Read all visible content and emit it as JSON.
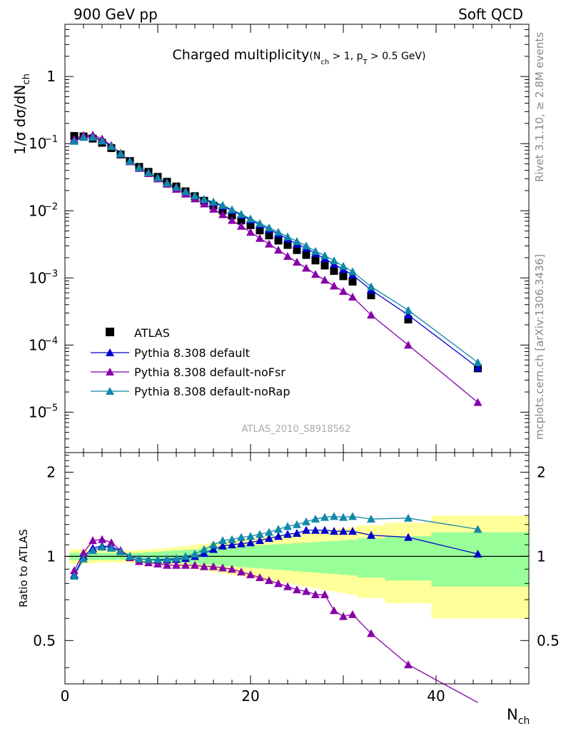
{
  "header": {
    "left_label": "900 GeV pp",
    "right_label": "Soft QCD"
  },
  "side_labels": {
    "rivet": "Rivet 3.1.10, ≥ 2.8M events",
    "mcplots": "mcplots.cern.ch [arXiv:1306.3436]"
  },
  "chart_data": {
    "type": "scatter",
    "title_main": "Charged multiplicity",
    "title_sub_parts": [
      "(N",
      "ch",
      " > 1, p",
      "T",
      " > 0.5 GeV)"
    ],
    "analysis_tag": "ATLAS_2010_S8918562",
    "xlabel_main": "N",
    "xlabel_sub": "ch",
    "ylabel_top_parts": [
      "1/σ dσ/dN",
      "ch"
    ],
    "ylabel_bottom": "Ratio to ATLAS",
    "xlim": [
      0,
      50
    ],
    "ylim_top": [
      2.5e-06,
      6
    ],
    "ylog_top": true,
    "ylim_bottom": [
      0.35,
      2.35
    ],
    "ylog_bottom": true,
    "x_ticks": [
      "0",
      "20",
      "40"
    ],
    "y_ticks_top": [
      {
        "base": "1",
        "exp": ""
      },
      {
        "base": "10",
        "exp": "−1"
      },
      {
        "base": "10",
        "exp": "−2"
      },
      {
        "base": "10",
        "exp": "−3"
      },
      {
        "base": "10",
        "exp": "−4"
      },
      {
        "base": "10",
        "exp": "−5"
      }
    ],
    "y_ticks_bottom": [
      "2",
      "1",
      "0.5"
    ],
    "legend_position": "lower-left",
    "colors": {
      "data": "#000000",
      "default": "#0000cc",
      "noFsr": "#8800aa",
      "noRap": "#1188aa",
      "band_inner": "#99ff99",
      "band_outer": "#ffff99"
    },
    "data": {
      "name": "ATLAS",
      "x": [
        1,
        2,
        3,
        4,
        5,
        6,
        7,
        8,
        9,
        10,
        11,
        12,
        13,
        14,
        15,
        16,
        17,
        18,
        19,
        20,
        21,
        22,
        23,
        24,
        25,
        26,
        27,
        28,
        29,
        30,
        31,
        33,
        37,
        44.5
      ],
      "y": [
        0.13,
        0.128,
        0.119,
        0.103,
        0.086,
        0.069,
        0.055,
        0.045,
        0.038,
        0.032,
        0.027,
        0.023,
        0.0195,
        0.0165,
        0.0141,
        0.0119,
        0.0101,
        0.0085,
        0.0072,
        0.0061,
        0.0051,
        0.0043,
        0.0036,
        0.0031,
        0.0026,
        0.0022,
        0.00182,
        0.00153,
        0.00127,
        0.00106,
        0.00088,
        0.00055,
        0.00024,
        4.5e-05
      ]
    },
    "series": [
      {
        "name": "Pythia 8.308 default",
        "x": [
          1,
          2,
          3,
          4,
          5,
          6,
          7,
          8,
          9,
          10,
          11,
          12,
          13,
          14,
          15,
          16,
          17,
          18,
          19,
          20,
          21,
          22,
          23,
          24,
          25,
          26,
          27,
          28,
          29,
          30,
          31,
          33,
          37,
          44.5
        ],
        "y": [
          0.111,
          0.128,
          0.127,
          0.112,
          0.093,
          0.072,
          0.055,
          0.044,
          0.037,
          0.031,
          0.026,
          0.0224,
          0.0192,
          0.0165,
          0.0145,
          0.0132,
          0.0117,
          0.0101,
          0.0086,
          0.0073,
          0.0062,
          0.0053,
          0.0045,
          0.0038,
          0.0032,
          0.00278,
          0.0023,
          0.00194,
          0.0016,
          0.00134,
          0.00111,
          0.00066,
          0.00028,
          4.6e-05
        ],
        "ratio": [
          0.86,
          1.0,
          1.07,
          1.09,
          1.08,
          1.05,
          1.0,
          0.98,
          0.975,
          0.97,
          0.97,
          0.975,
          0.985,
          1.0,
          1.025,
          1.06,
          1.09,
          1.1,
          1.11,
          1.12,
          1.14,
          1.16,
          1.18,
          1.2,
          1.21,
          1.24,
          1.24,
          1.24,
          1.23,
          1.23,
          1.23,
          1.19,
          1.17,
          1.02
        ]
      },
      {
        "name": "Pythia 8.308 default-noFsr",
        "x": [
          1,
          2,
          3,
          4,
          5,
          6,
          7,
          8,
          9,
          10,
          11,
          12,
          13,
          14,
          15,
          16,
          17,
          18,
          19,
          20,
          21,
          22,
          23,
          24,
          25,
          26,
          27,
          28,
          29,
          30,
          31,
          33,
          37,
          44.5
        ],
        "y": [
          0.117,
          0.133,
          0.135,
          0.118,
          0.094,
          0.07,
          0.054,
          0.043,
          0.036,
          0.03,
          0.025,
          0.021,
          0.0178,
          0.0151,
          0.0127,
          0.0106,
          0.0088,
          0.0072,
          0.0059,
          0.0048,
          0.0039,
          0.0032,
          0.0026,
          0.0021,
          0.00172,
          0.0014,
          0.00113,
          0.00093,
          0.00076,
          0.00063,
          0.00052,
          0.00028,
          0.0001,
          1.4e-05
        ],
        "ratio": [
          0.89,
          1.03,
          1.14,
          1.15,
          1.12,
          1.05,
          0.99,
          0.96,
          0.95,
          0.94,
          0.93,
          0.93,
          0.93,
          0.93,
          0.92,
          0.92,
          0.91,
          0.9,
          0.88,
          0.86,
          0.84,
          0.82,
          0.8,
          0.78,
          0.76,
          0.75,
          0.73,
          0.73,
          0.64,
          0.61,
          0.62,
          0.53,
          0.41,
          0.29
        ]
      },
      {
        "name": "Pythia 8.308 default-noRap",
        "x": [
          1,
          2,
          3,
          4,
          5,
          6,
          7,
          8,
          9,
          10,
          11,
          12,
          13,
          14,
          15,
          16,
          17,
          18,
          19,
          20,
          21,
          22,
          23,
          24,
          25,
          26,
          27,
          28,
          29,
          30,
          31,
          33,
          37,
          44.5
        ],
        "y": [
          0.109,
          0.124,
          0.125,
          0.11,
          0.091,
          0.071,
          0.055,
          0.044,
          0.037,
          0.031,
          0.026,
          0.0225,
          0.0194,
          0.0168,
          0.0149,
          0.0136,
          0.0121,
          0.0104,
          0.0089,
          0.0076,
          0.0065,
          0.0056,
          0.0048,
          0.0041,
          0.0035,
          0.003,
          0.0025,
          0.00215,
          0.0018,
          0.0015,
          0.00124,
          0.00074,
          0.00033,
          5.5e-05
        ],
        "ratio": [
          0.85,
          0.98,
          1.05,
          1.08,
          1.07,
          1.04,
          1.0,
          0.98,
          0.975,
          0.975,
          0.98,
          0.985,
          1.0,
          1.02,
          1.06,
          1.1,
          1.14,
          1.15,
          1.17,
          1.18,
          1.2,
          1.22,
          1.25,
          1.28,
          1.3,
          1.33,
          1.36,
          1.38,
          1.39,
          1.38,
          1.39,
          1.36,
          1.37,
          1.25
        ]
      }
    ],
    "ratio_band": {
      "edges": [
        0.5,
        1.5,
        2.5,
        3.5,
        4.5,
        5.5,
        6.5,
        7.5,
        8.5,
        9.5,
        10.5,
        11.5,
        12.5,
        13.5,
        14.5,
        15.5,
        16.5,
        17.5,
        18.5,
        19.5,
        20.5,
        21.5,
        22.5,
        23.5,
        24.5,
        25.5,
        26.5,
        27.5,
        28.5,
        29.5,
        30.5,
        31.5,
        34.5,
        39.5,
        50
      ],
      "inner": [
        0.03,
        0.03,
        0.03,
        0.03,
        0.03,
        0.03,
        0.03,
        0.03,
        0.035,
        0.04,
        0.045,
        0.05,
        0.055,
        0.06,
        0.065,
        0.07,
        0.075,
        0.08,
        0.085,
        0.09,
        0.095,
        0.1,
        0.105,
        0.11,
        0.115,
        0.12,
        0.125,
        0.13,
        0.135,
        0.14,
        0.145,
        0.16,
        0.18,
        0.22
      ],
      "outer": [
        0.06,
        0.06,
        0.055,
        0.05,
        0.05,
        0.05,
        0.05,
        0.055,
        0.06,
        0.065,
        0.07,
        0.08,
        0.09,
        0.1,
        0.11,
        0.12,
        0.13,
        0.14,
        0.15,
        0.16,
        0.17,
        0.18,
        0.19,
        0.2,
        0.21,
        0.22,
        0.23,
        0.24,
        0.25,
        0.26,
        0.27,
        0.29,
        0.32,
        0.4
      ]
    }
  }
}
